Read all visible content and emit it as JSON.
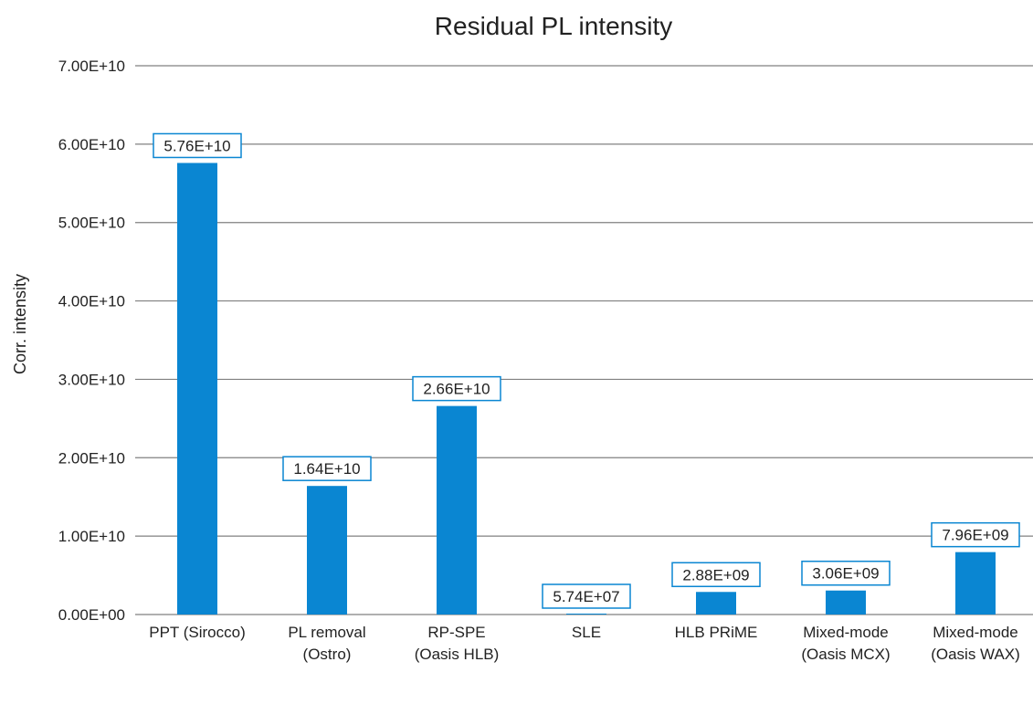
{
  "chart_data": {
    "type": "bar",
    "title": "Residual PL intensity",
    "ylabel": "Corr. intensity",
    "xlabel": "",
    "ylim": [
      0,
      70000000000
    ],
    "yticks": [
      0,
      10000000000,
      20000000000,
      30000000000,
      40000000000,
      50000000000,
      60000000000,
      70000000000
    ],
    "ytick_labels": [
      "0.00E+00",
      "1.00E+10",
      "2.00E+10",
      "3.00E+10",
      "4.00E+10",
      "5.00E+10",
      "6.00E+10",
      "7.00E+10"
    ],
    "grid": true,
    "legend": "none",
    "bar_color": "#0a86d2",
    "categories": [
      [
        "PPT (Sirocco)"
      ],
      [
        "PL removal",
        "(Ostro)"
      ],
      [
        "RP-SPE",
        "(Oasis HLB)"
      ],
      [
        "SLE"
      ],
      [
        "HLB PRiME"
      ],
      [
        "Mixed-mode",
        "(Oasis MCX)"
      ],
      [
        "Mixed-mode",
        "(Oasis WAX)"
      ]
    ],
    "values": [
      57600000000,
      16400000000,
      26600000000,
      57400000,
      2880000000,
      3060000000,
      7960000000
    ],
    "data_labels": [
      "5.76E+10",
      "1.64E+10",
      "2.66E+10",
      "5.74E+07",
      "2.88E+09",
      "3.06E+09",
      "7.96E+09"
    ]
  }
}
